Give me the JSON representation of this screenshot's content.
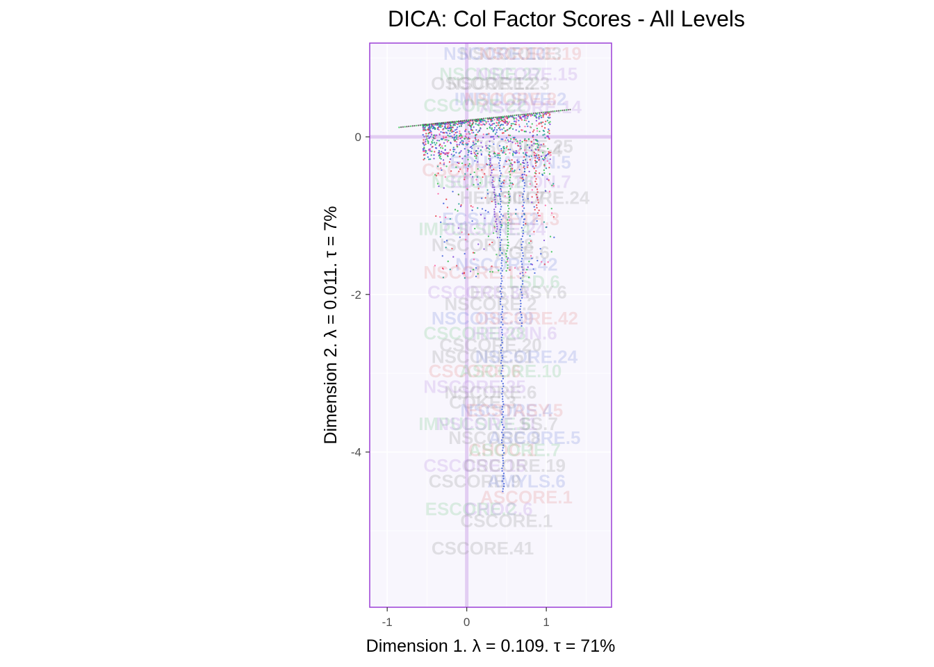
{
  "chart_data": {
    "type": "scatter",
    "title": "DICA: Col Factor Scores - All Levels",
    "xlabel": "Dimension 1.   λ = 0.109.  τ = 71%",
    "ylabel": "Dimension 2.   λ = 0.011.  τ = 7%",
    "xlim": [
      -1.22,
      1.82
    ],
    "ylim": [
      -5.97,
      1.19
    ],
    "xticks": [
      -1,
      0,
      1
    ],
    "xtick_labels": [
      "-1",
      "0",
      "1"
    ],
    "yticks": [
      0,
      -2,
      -4
    ],
    "ytick_labels": [
      "0",
      "-2",
      "-4"
    ],
    "grid": true,
    "legend": "none",
    "colors": {
      "panel_background": "#f8f6fd",
      "panel_border": "#9b3fd6",
      "origin_lines": "#e2cdf2",
      "grid": "#ffffff",
      "point_palette": [
        "#3b5bdb",
        "#e63946",
        "#2fbf4a",
        "#7a3fd6",
        "#1a9e8f",
        "#ff5fa2"
      ]
    },
    "labels": [
      {
        "text": "NSCORE.33",
        "x": 0.55,
        "y": 0.98
      },
      {
        "text": "NSCORE.10",
        "x": 0.35,
        "y": 0.98
      },
      {
        "text": "NSCORE.19",
        "x": 0.8,
        "y": 0.98
      },
      {
        "text": "NSCORE.27",
        "x": 0.3,
        "y": 0.72
      },
      {
        "text": "NSCORE.15",
        "x": 0.75,
        "y": 0.72
      },
      {
        "text": "NSCORE.23",
        "x": 0.4,
        "y": 0.6
      },
      {
        "text": "OSCORE.12",
        "x": 0.2,
        "y": 0.6
      },
      {
        "text": "IMPULSIVE.2",
        "x": 0.55,
        "y": 0.4
      },
      {
        "text": "NSCORE.8",
        "x": 0.55,
        "y": 0.4
      },
      {
        "text": "CSCORE.22",
        "x": 0.1,
        "y": 0.32
      },
      {
        "text": "ASCORE.14",
        "x": 0.8,
        "y": 0.3
      },
      {
        "text": "ESCORE.25",
        "x": 0.7,
        "y": -0.2
      },
      {
        "text": "SS.4",
        "x": 0.95,
        "y": -0.25
      },
      {
        "text": "EDUCATION.5",
        "x": 0.55,
        "y": -0.4
      },
      {
        "text": "CSCORE.44",
        "x": 0.08,
        "y": -0.5
      },
      {
        "text": "NSCORE.26",
        "x": 0.2,
        "y": -0.65
      },
      {
        "text": "EDUCATION.7",
        "x": 0.55,
        "y": -0.65
      },
      {
        "text": "HEROIN.7",
        "x": 0.45,
        "y": -0.85
      },
      {
        "text": "ASCORE.24",
        "x": 0.9,
        "y": -0.85
      },
      {
        "text": "ECSTASY.2",
        "x": 0.3,
        "y": -1.12
      },
      {
        "text": "METH.3",
        "x": 0.75,
        "y": -1.12
      },
      {
        "text": "IMPULSIVE.4",
        "x": 0.1,
        "y": -1.25
      },
      {
        "text": "CSCORE.24",
        "x": 0.35,
        "y": -1.25
      },
      {
        "text": "NSCORE.48",
        "x": 0.2,
        "y": -1.45
      },
      {
        "text": "AGE.6",
        "x": 0.7,
        "y": -1.55
      },
      {
        "text": "NSCORE.42",
        "x": 0.5,
        "y": -1.7
      },
      {
        "text": "NSCORE.13",
        "x": 0.1,
        "y": -1.8
      },
      {
        "text": "LSD.6",
        "x": 0.85,
        "y": -1.92
      },
      {
        "text": "CSCORE.38",
        "x": 0.15,
        "y": -2.05
      },
      {
        "text": "ECSTASY.6",
        "x": 0.65,
        "y": -2.05
      },
      {
        "text": "NSCORE.2",
        "x": 0.3,
        "y": -2.2
      },
      {
        "text": "NSCORE.39",
        "x": 0.2,
        "y": -2.38
      },
      {
        "text": "OSCORE.42",
        "x": 0.75,
        "y": -2.38
      },
      {
        "text": "CSCORE.28",
        "x": 0.1,
        "y": -2.57
      },
      {
        "text": "HEROIN.6",
        "x": 0.6,
        "y": -2.57
      },
      {
        "text": "CSCORE.20",
        "x": 0.3,
        "y": -2.72
      },
      {
        "text": "NSCORE.51",
        "x": 0.2,
        "y": -2.87
      },
      {
        "text": "NSCORE.24",
        "x": 0.75,
        "y": -2.87
      },
      {
        "text": "CSCORE.6",
        "x": 0.1,
        "y": -3.05
      },
      {
        "text": "ASCORE.10",
        "x": 0.55,
        "y": -3.05
      },
      {
        "text": "NSCORE.35",
        "x": 0.1,
        "y": -3.25
      },
      {
        "text": "NSCORE.6",
        "x": 0.3,
        "y": -3.32
      },
      {
        "text": "COKE.3",
        "x": 0.2,
        "y": -3.45
      },
      {
        "text": "NSCORE.4",
        "x": 0.5,
        "y": -3.55
      },
      {
        "text": "ECSTASY.5",
        "x": 0.6,
        "y": -3.55
      },
      {
        "text": "IMPULSIVE.5",
        "x": 0.1,
        "y": -3.72
      },
      {
        "text": "NSCORE.11",
        "x": 0.25,
        "y": -3.72
      },
      {
        "text": "SS.7",
        "x": 0.9,
        "y": -3.72
      },
      {
        "text": "NSCORE.8",
        "x": 0.35,
        "y": -3.9
      },
      {
        "text": "ASCORE.5",
        "x": 0.85,
        "y": -3.9
      },
      {
        "text": "CHOC.1",
        "x": 0.45,
        "y": -4.05
      },
      {
        "text": "ASCORE.7",
        "x": 0.6,
        "y": -4.05
      },
      {
        "text": "CSCORE.15",
        "x": 0.1,
        "y": -4.25
      },
      {
        "text": "CSCORE.19",
        "x": 0.6,
        "y": -4.25
      },
      {
        "text": "CSCORE.9",
        "x": 0.1,
        "y": -4.45
      },
      {
        "text": "AMYLS.6",
        "x": 0.75,
        "y": -4.45
      },
      {
        "text": "ASCORE.1",
        "x": 0.75,
        "y": -4.65
      },
      {
        "text": "ESCORE.2",
        "x": 0.05,
        "y": -4.8
      },
      {
        "text": "CHOC.6",
        "x": 0.4,
        "y": -4.8
      },
      {
        "text": "CSCORE.1",
        "x": 0.5,
        "y": -4.95
      },
      {
        "text": "CSCORE.41",
        "x": 0.2,
        "y": -5.3
      }
    ]
  }
}
